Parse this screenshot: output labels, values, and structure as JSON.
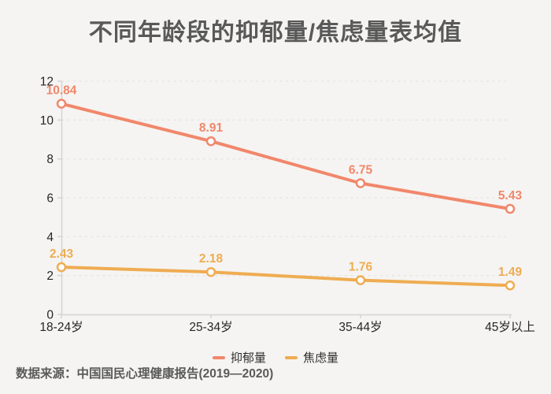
{
  "title": "不同年龄段的抑郁量/焦虑量表均值",
  "source_note": "数据来源：中国国民心理健康报告(2019—2020)",
  "colors": {
    "background": "#F5F4F2",
    "title_text": "#595959",
    "axis_text": "#262626",
    "axis_line": "#D6D3D0",
    "grid_line": "#E7E4E1",
    "source_text": "#5A5A5A",
    "marker_fill": "#FFFFFF",
    "depression": "#F1876B",
    "anxiety": "#EFAC52"
  },
  "chart_data": {
    "type": "line",
    "title": "不同年龄段的抑郁量/焦虑量表均值",
    "categories": [
      "18-24岁",
      "25-34岁",
      "35-44岁",
      "45岁以上"
    ],
    "series": [
      {
        "name": "抑郁量",
        "color": "#F1876B",
        "values": [
          10.84,
          8.91,
          6.75,
          5.43
        ]
      },
      {
        "name": "焦虑量",
        "color": "#EFAC52",
        "values": [
          2.43,
          2.18,
          1.76,
          1.49
        ]
      }
    ],
    "ylim": [
      0,
      12
    ],
    "y_ticks": [
      0,
      2,
      4,
      6,
      8,
      10,
      12
    ],
    "grid": true,
    "grid_style": "dashed",
    "point_labels": true,
    "legend_position": "bottom"
  },
  "legend": {
    "items": [
      {
        "label": "抑郁量",
        "color": "#F1876B"
      },
      {
        "label": "焦虑量",
        "color": "#EFAC52"
      }
    ]
  }
}
